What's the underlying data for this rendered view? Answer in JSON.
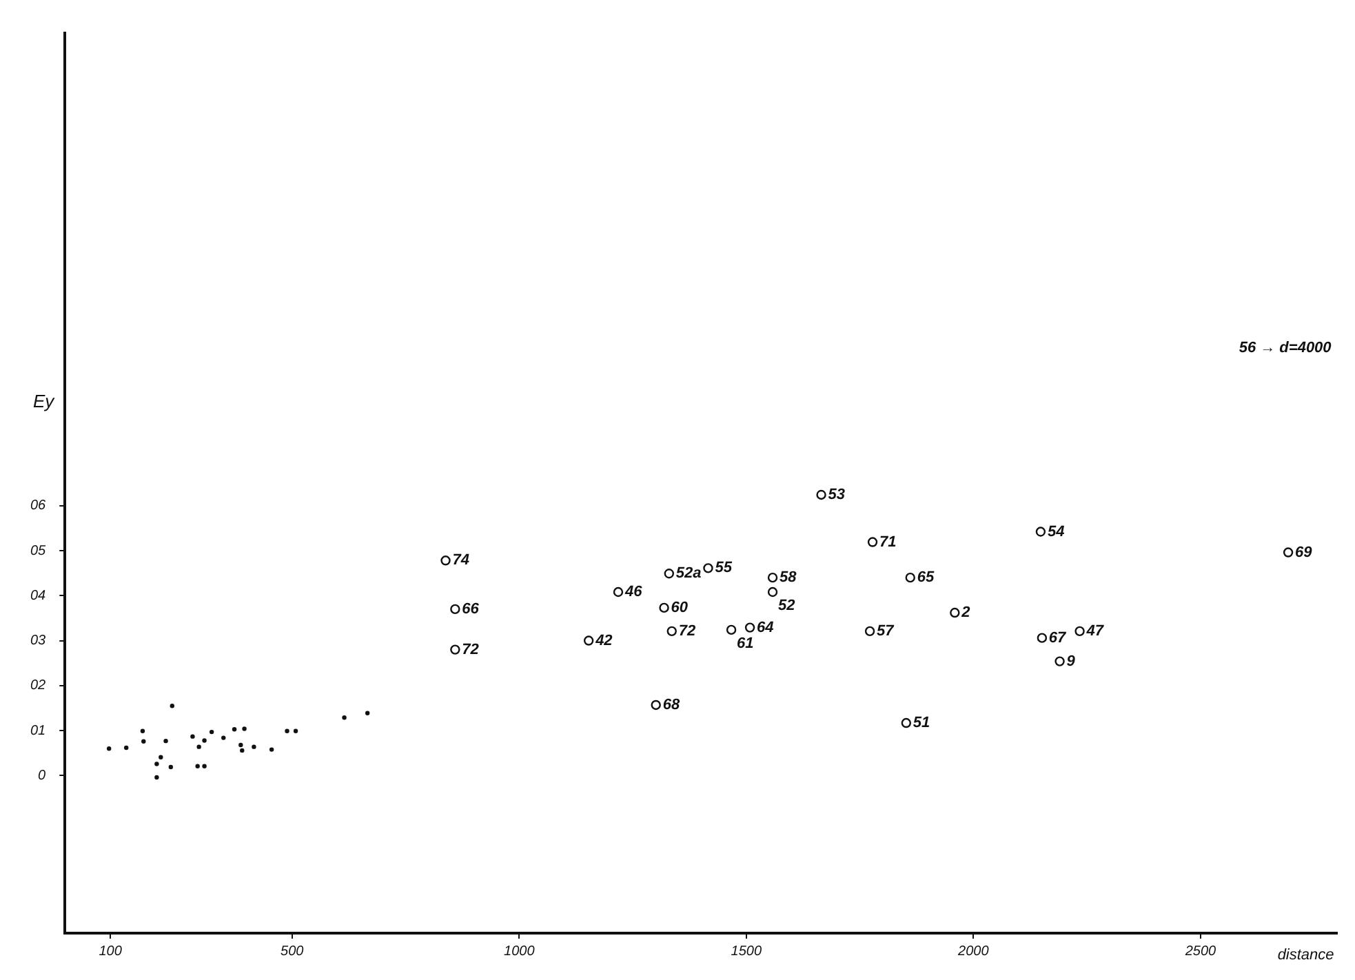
{
  "chart_data": {
    "type": "scatter",
    "xlabel": "distance",
    "ylabel": "Ey",
    "xlim": [
      0,
      2800
    ],
    "ylim": [
      -3.5,
      16.5
    ],
    "xticks": [
      100,
      500,
      1000,
      1500,
      2000,
      2500
    ],
    "yticks": [
      0,
      {
        "value": 1,
        "label": "01"
      },
      {
        "value": 2,
        "label": "02"
      },
      {
        "value": 3,
        "label": "03"
      },
      {
        "value": 4,
        "label": "04"
      },
      {
        "value": 5,
        "label": "05"
      },
      {
        "value": 6,
        "label": "06"
      }
    ],
    "grid": false,
    "legend": false,
    "marker": "circle",
    "series": [
      {
        "color": "#111111",
        "x": [
          97,
          135,
          171,
          173,
          202,
          202,
          211,
          222,
          233,
          236,
          281,
          295,
          292,
          307,
          307,
          323,
          349,
          373,
          395,
          387,
          390,
          416,
          455,
          489,
          508,
          615,
          666
        ],
        "values": [
          0.6,
          0.62,
          0.99,
          0.76,
          0.26,
          -0.04,
          0.41,
          0.77,
          0.19,
          1.55,
          0.87,
          0.64,
          0.21,
          0.21,
          0.78,
          0.97,
          0.84,
          1.03,
          1.04,
          0.68,
          0.56,
          0.64,
          0.58,
          0.99,
          0.99,
          1.29,
          1.39
        ]
      },
      {
        "color": "#111111",
        "x": [
          838,
          859,
          859,
          1153,
          1218,
          1330,
          1319,
          1336,
          1416,
          1301,
          1467,
          1508,
          1558,
          1558,
          1665,
          1778,
          1861,
          1772,
          1852,
          1959,
          2148,
          2151,
          2234,
          2190,
          2693
        ],
        "values": [
          4.78,
          3.7,
          2.8,
          3.0,
          4.08,
          4.49,
          3.73,
          3.21,
          4.61,
          1.57,
          3.24,
          3.29,
          4.4,
          4.08,
          6.24,
          5.19,
          4.4,
          3.21,
          1.17,
          3.62,
          5.42,
          3.06,
          3.21,
          2.54,
          4.96
        ]
      }
    ],
    "annotations": [
      {
        "text": "74",
        "x": 838,
        "y": 4.78
      },
      {
        "text": "66",
        "x": 859,
        "y": 3.7
      },
      {
        "text": "72",
        "x": 859,
        "y": 2.8
      },
      {
        "text": "42",
        "x": 1153,
        "y": 3.0
      },
      {
        "text": "46",
        "x": 1218,
        "y": 4.08
      },
      {
        "text": "52a",
        "x": 1330,
        "y": 4.49
      },
      {
        "text": "60",
        "x": 1319,
        "y": 3.73
      },
      {
        "text": "72",
        "x": 1336,
        "y": 3.21
      },
      {
        "text": "55",
        "x": 1416,
        "y": 4.61
      },
      {
        "text": "68",
        "x": 1301,
        "y": 1.57
      },
      {
        "text": "61",
        "x": 1467,
        "y": 3.24
      },
      {
        "text": "64",
        "x": 1508,
        "y": 3.29
      },
      {
        "text": "58",
        "x": 1558,
        "y": 4.4
      },
      {
        "text": "52",
        "x": 1558,
        "y": 4.08
      },
      {
        "text": "53",
        "x": 1665,
        "y": 6.24
      },
      {
        "text": "71",
        "x": 1778,
        "y": 5.19
      },
      {
        "text": "65",
        "x": 1861,
        "y": 4.4
      },
      {
        "text": "57",
        "x": 1772,
        "y": 3.21
      },
      {
        "text": "51",
        "x": 1852,
        "y": 1.17
      },
      {
        "text": "2",
        "x": 1959,
        "y": 3.62
      },
      {
        "text": "54",
        "x": 2148,
        "y": 5.42
      },
      {
        "text": "67",
        "x": 2151,
        "y": 3.06
      },
      {
        "text": "47",
        "x": 2234,
        "y": 3.21
      },
      {
        "text": "9",
        "x": 2190,
        "y": 2.54
      },
      {
        "text": "69",
        "x": 2693,
        "y": 4.96
      },
      "56 → d=4000"
    ]
  }
}
